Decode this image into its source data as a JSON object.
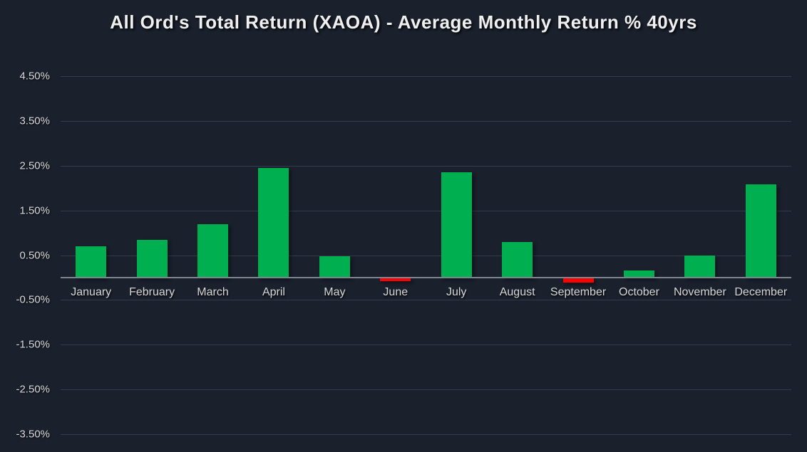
{
  "title": "All Ord's Total Return (XAOA) - Average Monthly Return % 40yrs",
  "chart_data": {
    "type": "bar",
    "title": "All Ord's Total Return (XAOA) - Average Monthly Return % 40yrs",
    "categories": [
      "January",
      "February",
      "March",
      "April",
      "May",
      "June",
      "July",
      "August",
      "September",
      "October",
      "November",
      "December"
    ],
    "values": [
      0.7,
      0.85,
      1.2,
      2.45,
      0.48,
      -0.07,
      2.35,
      0.8,
      -0.1,
      0.16,
      0.5,
      2.08
    ],
    "xlabel": "",
    "ylabel": "",
    "unit": "%",
    "ylim": [
      -3.9,
      4.75
    ],
    "yticks": [
      {
        "value": 4.5,
        "label": "4.50%"
      },
      {
        "value": 3.5,
        "label": "3.50%"
      },
      {
        "value": 2.5,
        "label": "2.50%"
      },
      {
        "value": 1.5,
        "label": "1.50%"
      },
      {
        "value": 0.5,
        "label": "0.50%"
      },
      {
        "value": -0.5,
        "label": "-0.50%"
      },
      {
        "value": -1.5,
        "label": "-1.50%"
      },
      {
        "value": -2.5,
        "label": "-2.50%"
      },
      {
        "value": -3.5,
        "label": "-3.50%"
      }
    ],
    "grid": true,
    "legend": false,
    "colors": {
      "positive": "#00b050",
      "negative": "#ff0000",
      "background": "#1a202c",
      "gridline": "#333b4c",
      "zero_axis": "#7e8590",
      "tick_text": "#d8d8d8",
      "title_text": "#f0f0f0"
    }
  }
}
